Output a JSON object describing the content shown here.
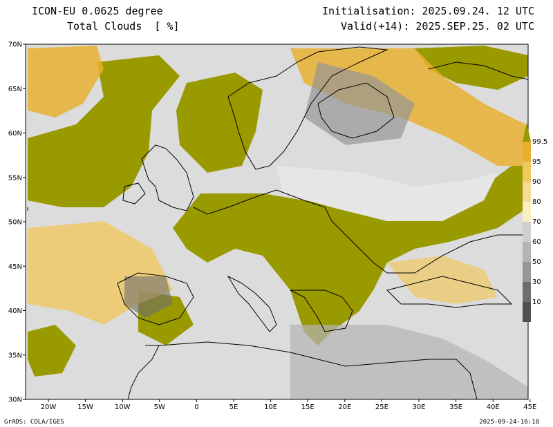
{
  "header": {
    "title": "ICON-EU 0.0625 degree",
    "subtitle": "Total Clouds  [ %]",
    "initialisation": "Initialisation: 2025.09.24. 12 UTC",
    "valid": "Valid(+14): 2025.SEP.25. 02 UTC"
  },
  "map": {
    "lat_labels": [
      "70N",
      "65N",
      "60N",
      "55N",
      "50N",
      "45N",
      "40N",
      "35N",
      "30N"
    ],
    "lon_labels": [
      "20W",
      "15W",
      "10W",
      "5W",
      "0",
      "5E",
      "10E",
      "15E",
      "20E",
      "25E",
      "30E",
      "35E",
      "40E",
      "45E"
    ],
    "background_color": "#dcdcdc",
    "coastline_color": "#000000"
  },
  "colorbar": {
    "labels": [
      "99.5",
      "95",
      "90",
      "80",
      "70",
      "60",
      "50",
      "30",
      "10"
    ],
    "colors": [
      "#999900",
      "#e8b030",
      "#f0c860",
      "#f4dc98",
      "#f8f0c0",
      "#d0d0d0",
      "#b4b4b4",
      "#969696",
      "#6e6e6e",
      "#505050"
    ]
  },
  "footer": {
    "left": "GrADS: COLA/IGES",
    "right": "2025-09-24-16:18"
  }
}
